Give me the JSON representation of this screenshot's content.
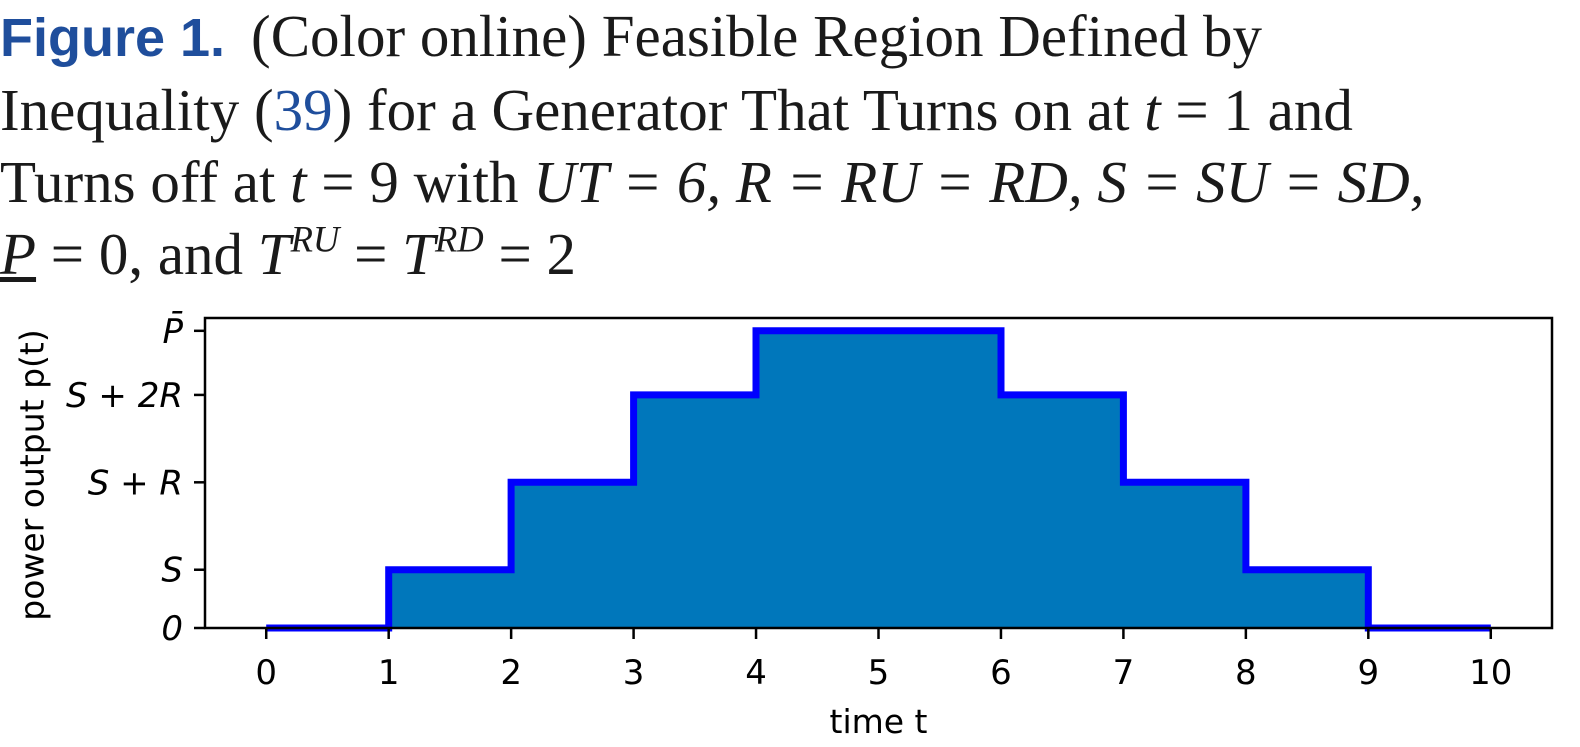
{
  "caption": {
    "figure_label": "Figure 1.",
    "line1_text": "(Color online) Feasible Region Defined by",
    "line2_a": "Inequality (",
    "line2_ref": "39",
    "line2_b": ") for a Generator That Turns on at ",
    "line2_t": "t",
    "line2_c": " = 1 and",
    "line3_a": "Turns off at ",
    "line3_t": "t",
    "line3_b": " = 9 with ",
    "line3_c": "UT = 6, R = RU = RD, S = SU = SD,",
    "line4_P": "P",
    "line4_a": " = 0, and ",
    "line4_T1": "T",
    "line4_sup1": "RU",
    "line4_eq": " = ",
    "line4_T2": "T",
    "line4_sup2": "RD",
    "line4_end": " = 2"
  },
  "chart_data": {
    "type": "area",
    "step": "post",
    "xlabel": "time t",
    "ylabel": "power output p(t)",
    "xlim": [
      -0.5,
      10.5
    ],
    "x_ticks": [
      0,
      1,
      2,
      3,
      4,
      5,
      6,
      7,
      8,
      9,
      10
    ],
    "y_ticks": [
      {
        "label": "0",
        "value": 0
      },
      {
        "label": "S",
        "value": 1
      },
      {
        "label": "S + R",
        "value": 2.5
      },
      {
        "label": "S + 2R",
        "value": 4
      },
      {
        "label": "P̄",
        "value": 5.1
      }
    ],
    "ylim": [
      0,
      5.32
    ],
    "x": [
      0,
      1,
      2,
      3,
      4,
      5,
      6,
      7,
      8,
      9,
      10
    ],
    "values": [
      0,
      1,
      2.5,
      4,
      5.1,
      5.1,
      4,
      2.5,
      1,
      0,
      0
    ],
    "fill_color": "#0077bb",
    "line_color": "#0000ff",
    "grid": false
  }
}
